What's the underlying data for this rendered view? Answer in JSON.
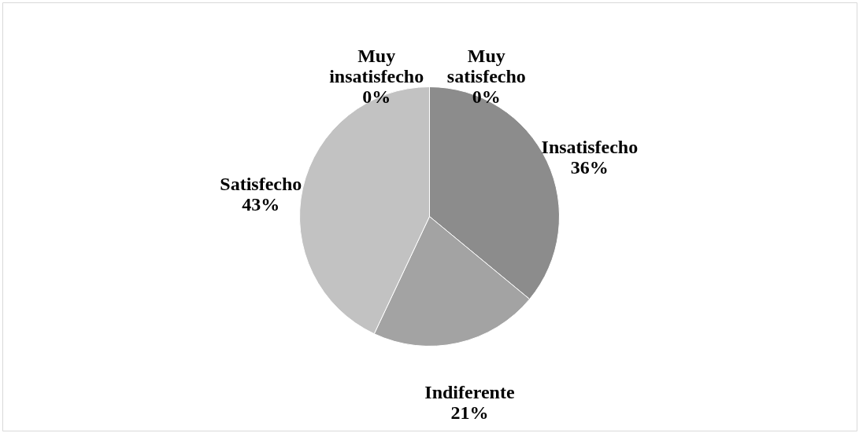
{
  "chart_data": {
    "type": "pie",
    "categories": [
      "Muy satisfecho",
      "Insatisfecho",
      "Indiferente",
      "Satisfecho",
      "Muy insatisfecho"
    ],
    "values": [
      0,
      36,
      21,
      43,
      0
    ],
    "value_labels": [
      "0%",
      "36%",
      "21%",
      "43%",
      "0%"
    ],
    "colors": [
      "#6e6e6e",
      "#8c8c8c",
      "#a3a3a3",
      "#c2c2c2",
      "#d6d6d6"
    ]
  }
}
